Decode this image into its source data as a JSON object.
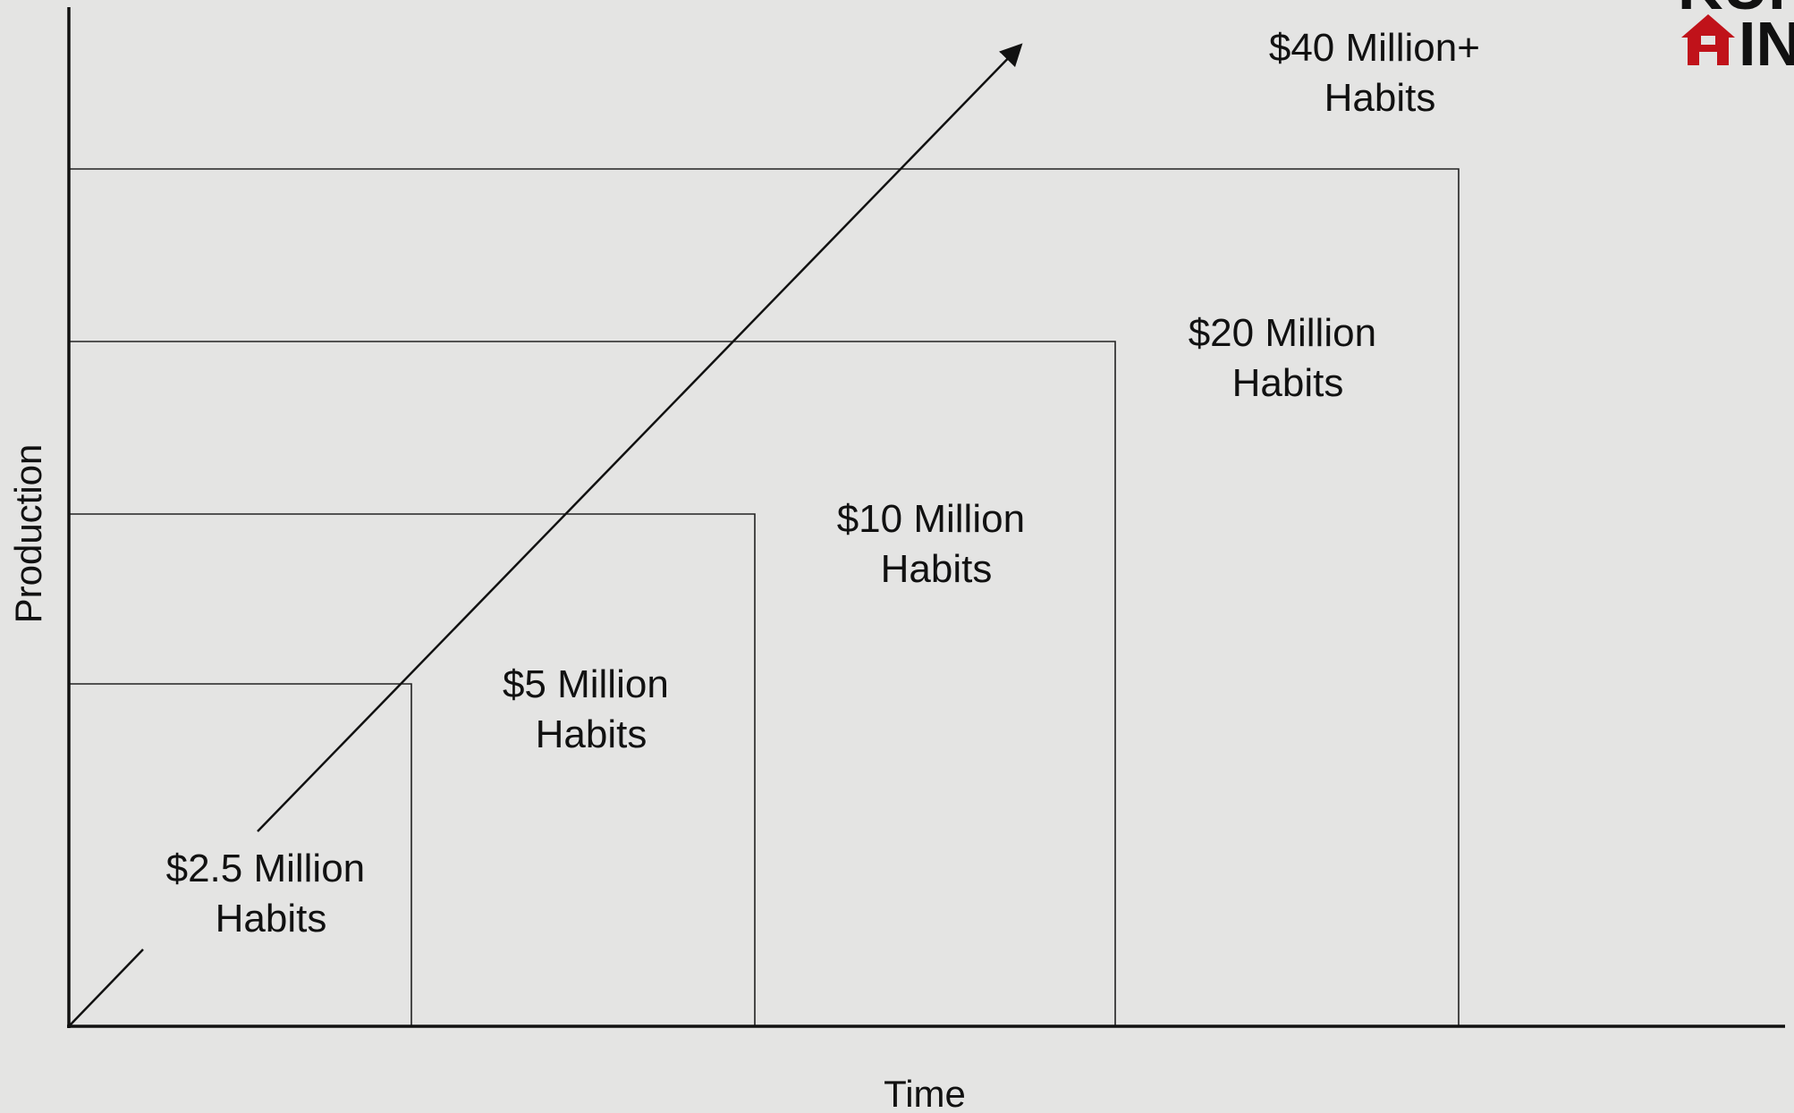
{
  "axes": {
    "x_label": "Time",
    "y_label": "Production"
  },
  "tiers": [
    {
      "line1": "$2.5 Million",
      "line2": "Habits"
    },
    {
      "line1": "$5 Million",
      "line2": "Habits"
    },
    {
      "line1": "$10 Million",
      "line2": "Habits"
    },
    {
      "line1": "$20 Million",
      "line2": "Habits"
    },
    {
      "line1": "$40 Million+",
      "line2": "Habits"
    }
  ],
  "logo": {
    "top_fragment": "KUI",
    "bottom_fragment": "IN",
    "accent_color": "#c0121a"
  },
  "colors": {
    "background": "#e4e4e3",
    "lines": "#111111"
  }
}
